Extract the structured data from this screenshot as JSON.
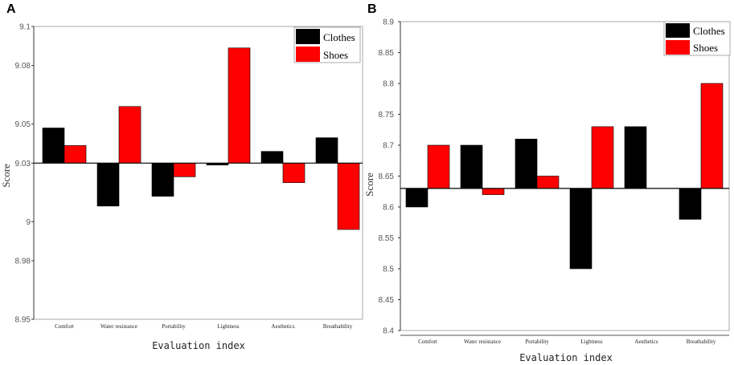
{
  "panels": [
    "A",
    "B"
  ],
  "colors": {
    "Clothes": "#000000",
    "Shoes": "#ff0000"
  },
  "chart_data": [
    {
      "type": "bar",
      "panel": "A",
      "xlabel": "Evaluation index",
      "ylabel": "Score",
      "categories": [
        "Comfort",
        "Water resistance",
        "Portability",
        "Lightness",
        "Aesthetics",
        "Breathability"
      ],
      "ylim": [
        8.95,
        9.1
      ],
      "yticks": [
        "9.1",
        "9.08",
        "9.05",
        "9.03",
        "9",
        "8.98",
        "8.95"
      ],
      "yticks_values": [
        9.1,
        9.08,
        9.05,
        9.03,
        9.0,
        8.98,
        8.95
      ],
      "baseline": 9.03,
      "legend": "top-right",
      "series": [
        {
          "name": "Clothes",
          "values": [
            9.048,
            9.008,
            9.013,
            9.029,
            9.036,
            9.043
          ]
        },
        {
          "name": "Shoes",
          "values": [
            9.039,
            9.059,
            9.023,
            9.089,
            9.02,
            8.996
          ]
        }
      ]
    },
    {
      "type": "bar",
      "panel": "B",
      "xlabel": "Evaluation index",
      "ylabel": "Score",
      "categories": [
        "Comfort",
        "Water resistance",
        "Portability",
        "Lightness",
        "Aesthetics",
        "Breathability"
      ],
      "ylim": [
        8.4,
        8.9
      ],
      "yticks": [
        "8.9",
        "8.85",
        "8.8",
        "8.75",
        "8.7",
        "8.65",
        "8.6",
        "8.55",
        "8.5",
        "8.45",
        "8.4"
      ],
      "yticks_values": [
        8.9,
        8.85,
        8.8,
        8.75,
        8.7,
        8.65,
        8.6,
        8.55,
        8.5,
        8.45,
        8.4
      ],
      "baseline": 8.63,
      "legend": "top-right",
      "series": [
        {
          "name": "Clothes",
          "values": [
            8.6,
            8.7,
            8.71,
            8.5,
            8.73,
            8.58
          ]
        },
        {
          "name": "Shoes",
          "values": [
            8.7,
            8.62,
            8.65,
            8.73,
            null,
            8.8
          ]
        }
      ]
    }
  ]
}
